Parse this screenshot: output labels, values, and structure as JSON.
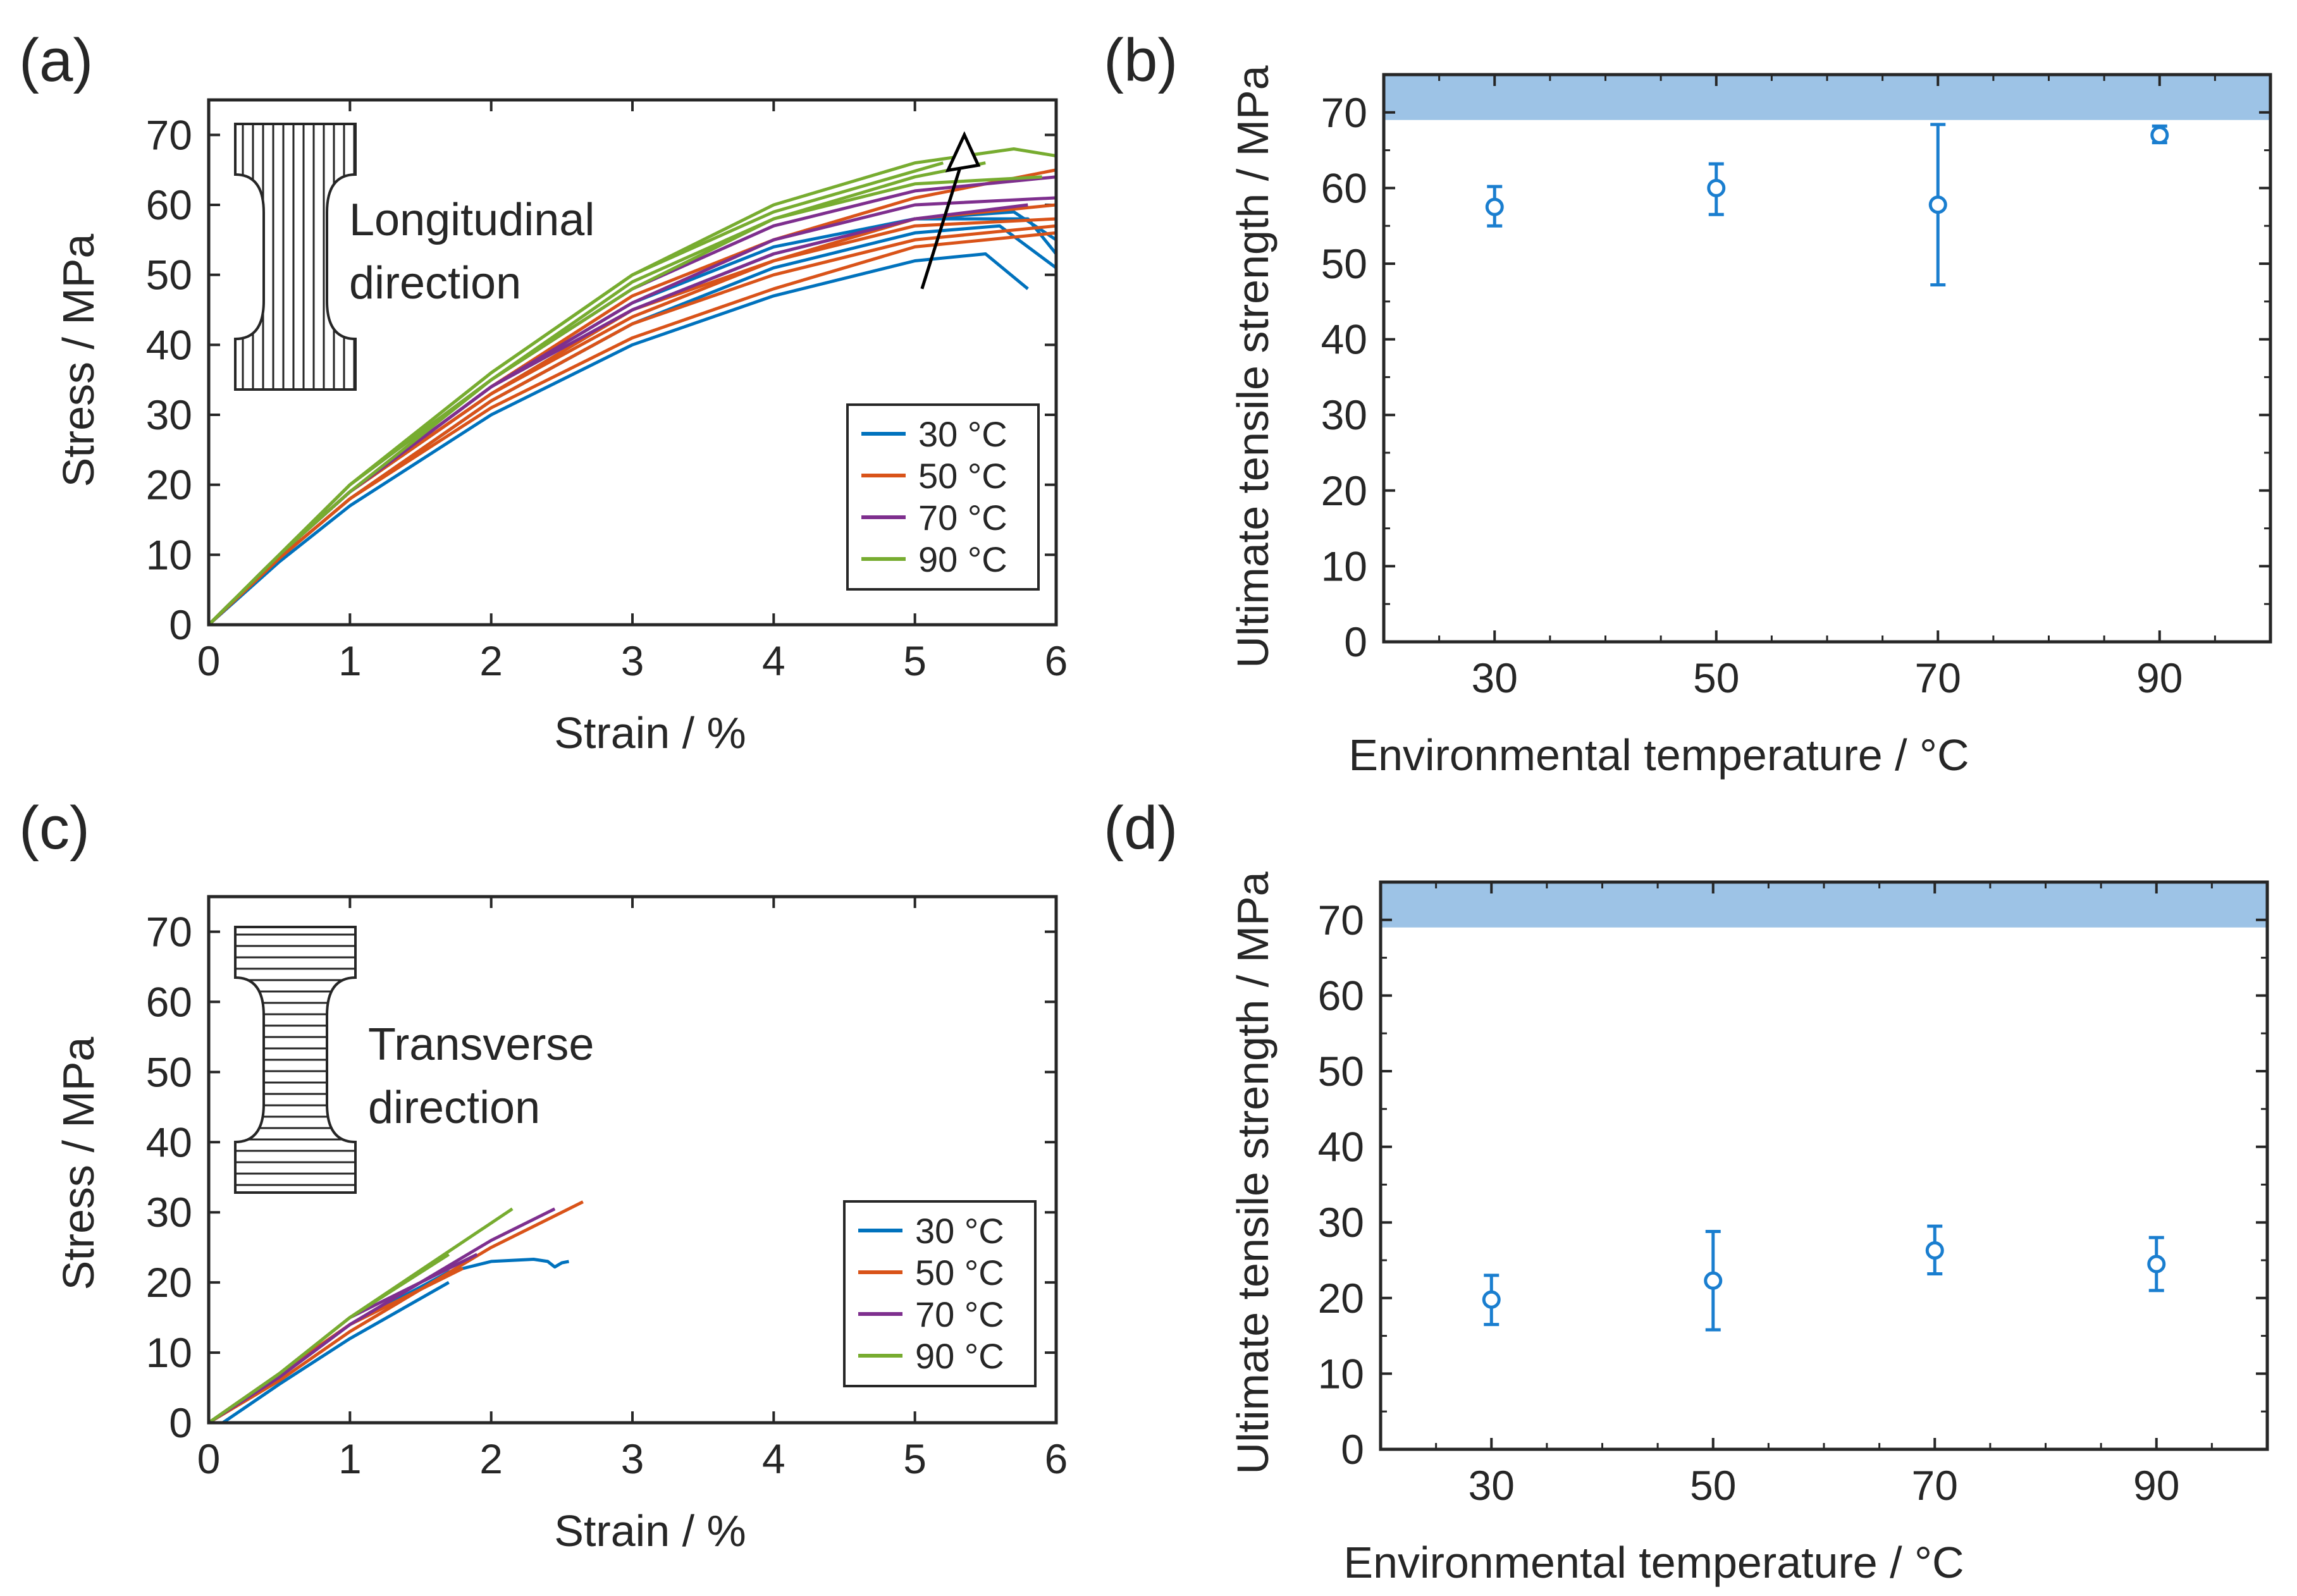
{
  "colors": {
    "30": "#0072BD",
    "50": "#D95319",
    "70": "#7E2F8E",
    "90": "#77AC30",
    "band": "#9DC3E6",
    "marker": "#1A7ECF"
  },
  "legend_labels": [
    "30 °C",
    "50 °C",
    "70 °C",
    "90 °C"
  ],
  "chart_data": [
    {
      "panel": "(a)",
      "type": "line",
      "xlabel": "Strain / %",
      "ylabel": "Stress / MPa",
      "xlim": [
        0,
        6
      ],
      "ylim": [
        0,
        75
      ],
      "xticks": [
        0,
        1,
        2,
        3,
        4,
        5,
        6
      ],
      "yticks": [
        0,
        10,
        20,
        30,
        40,
        50,
        60,
        70
      ],
      "inset_text": [
        "Longitudinal",
        "direction"
      ],
      "inset_pattern": "vertical",
      "legend": [
        "30 °C",
        "50 °C",
        "70 °C",
        "90 °C"
      ],
      "series": [
        {
          "name": "30 °C",
          "curves": [
            {
              "x": [
                0,
                0.5,
                1,
                2,
                3,
                4,
                5,
                5.5,
                5.8
              ],
              "y": [
                0,
                9,
                17,
                30,
                40,
                47,
                52,
                53,
                48
              ]
            },
            {
              "x": [
                0,
                0.5,
                1,
                2,
                3,
                4,
                5,
                5.6,
                6
              ],
              "y": [
                0,
                9.5,
                18,
                32,
                43,
                51,
                56,
                57,
                51
              ]
            },
            {
              "x": [
                0,
                0.5,
                1,
                2,
                3,
                4,
                5,
                5.7,
                6
              ],
              "y": [
                0,
                10,
                19,
                33,
                45,
                53,
                58,
                59,
                55
              ]
            },
            {
              "x": [
                0,
                0.5,
                1,
                2,
                3,
                4,
                5,
                5.8,
                6
              ],
              "y": [
                0,
                10,
                19,
                34,
                46,
                54,
                58,
                58,
                53
              ]
            }
          ]
        },
        {
          "name": "50 °C",
          "curves": [
            {
              "x": [
                0,
                0.5,
                1,
                2,
                3,
                4,
                5,
                6
              ],
              "y": [
                0,
                9.5,
                18,
                31,
                41,
                48,
                54,
                56
              ]
            },
            {
              "x": [
                0,
                0.5,
                1,
                2,
                3,
                4,
                5,
                6
              ],
              "y": [
                0,
                9.5,
                18,
                32,
                43,
                50,
                55,
                57
              ]
            },
            {
              "x": [
                0,
                0.5,
                1,
                2,
                3,
                4,
                5,
                6
              ],
              "y": [
                0,
                10,
                19,
                33,
                45,
                52,
                57,
                58
              ]
            },
            {
              "x": [
                0,
                0.5,
                1,
                2,
                3,
                4,
                5,
                6
              ],
              "y": [
                0,
                10,
                19,
                34,
                47,
                55,
                61,
                65
              ]
            },
            {
              "x": [
                0,
                0.5,
                1,
                2,
                3,
                4,
                5,
                6
              ],
              "y": [
                0,
                10,
                19,
                33,
                44,
                52,
                58,
                60
              ]
            }
          ]
        },
        {
          "name": "70 °C",
          "curves": [
            {
              "x": [
                0,
                0.5,
                1,
                2,
                3,
                4,
                5,
                6
              ],
              "y": [
                0,
                10,
                20,
                35,
                48,
                57,
                62,
                64
              ]
            },
            {
              "x": [
                0,
                0.5,
                1,
                2,
                3,
                4,
                5,
                6
              ],
              "y": [
                0,
                10,
                19,
                34,
                46,
                55,
                60,
                61
              ]
            },
            {
              "x": [
                0,
                0.5,
                1,
                2,
                3,
                4,
                5,
                5.8
              ],
              "y": [
                0,
                10,
                19,
                34,
                45,
                53,
                58,
                60
              ]
            }
          ]
        },
        {
          "name": "90 °C",
          "curves": [
            {
              "x": [
                0,
                0.5,
                1,
                2,
                3,
                4,
                5,
                5.7,
                6
              ],
              "y": [
                0,
                10,
                20,
                36,
                50,
                60,
                66,
                68,
                67
              ]
            },
            {
              "x": [
                0,
                0.5,
                1,
                2,
                3,
                4,
                5,
                5.5
              ],
              "y": [
                0,
                10,
                20,
                35,
                49,
                58,
                64,
                66
              ]
            },
            {
              "x": [
                0,
                0.5,
                1,
                2,
                3,
                4,
                5,
                5.9
              ],
              "y": [
                0,
                10,
                19,
                35,
                48,
                58,
                63,
                64
              ]
            },
            {
              "x": [
                0,
                0.5,
                1,
                2,
                3,
                4,
                5.2
              ],
              "y": [
                0,
                10,
                20,
                36,
                50,
                59,
                66
              ]
            }
          ]
        }
      ],
      "arrow": {
        "from": [
          5.05,
          48
        ],
        "to": [
          5.35,
          70
        ]
      }
    },
    {
      "panel": "(b)",
      "type": "scatter",
      "xlabel": "Environmental temperature / °C",
      "ylabel": "Ultimate tensile strength / MPa",
      "xlim": [
        20,
        100
      ],
      "ylim": [
        0,
        75
      ],
      "xticks": [
        30,
        50,
        70,
        90
      ],
      "yticks": [
        0,
        10,
        20,
        30,
        40,
        50,
        60,
        70
      ],
      "band": [
        69,
        75
      ],
      "points": [
        {
          "x": 30,
          "y": 57.5,
          "lo": 55,
          "hi": 60.2
        },
        {
          "x": 50,
          "y": 60,
          "lo": 56.5,
          "hi": 63.2
        },
        {
          "x": 70,
          "y": 57.8,
          "lo": 47.2,
          "hi": 68.4
        },
        {
          "x": 90,
          "y": 67,
          "lo": 66,
          "hi": 68.2
        }
      ]
    },
    {
      "panel": "(c)",
      "type": "line",
      "xlabel": "Strain / %",
      "ylabel": "Stress / MPa",
      "xlim": [
        0,
        6
      ],
      "ylim": [
        0,
        75
      ],
      "xticks": [
        0,
        1,
        2,
        3,
        4,
        5,
        6
      ],
      "yticks": [
        0,
        10,
        20,
        30,
        40,
        50,
        60,
        70
      ],
      "inset_text": [
        "Transverse",
        "direction"
      ],
      "inset_pattern": "horizontal",
      "legend": [
        "30 °C",
        "50 °C",
        "70 °C",
        "90 °C"
      ],
      "series": [
        {
          "name": "30 °C",
          "curves": [
            {
              "x": [
                0.1,
                0.5,
                1,
                1.7
              ],
              "y": [
                0,
                5.5,
                12,
                20
              ]
            },
            {
              "x": [
                0,
                0.5,
                1,
                1.7,
                2.0,
                2.3,
                2.4,
                2.45,
                2.5,
                2.55
              ],
              "y": [
                0,
                6.5,
                14,
                21.5,
                23,
                23.3,
                23,
                22.2,
                22.8,
                23
              ]
            }
          ]
        },
        {
          "name": "50 °C",
          "curves": [
            {
              "x": [
                0,
                0.5,
                1,
                2,
                2.65
              ],
              "y": [
                0,
                6,
                13,
                25,
                31.5
              ]
            },
            {
              "x": [
                0,
                0.5,
                1,
                1.8
              ],
              "y": [
                0,
                7,
                14,
                22
              ]
            }
          ]
        },
        {
          "name": "70 °C",
          "curves": [
            {
              "x": [
                0,
                0.5,
                1,
                2,
                2.45
              ],
              "y": [
                0,
                6.5,
                14,
                26,
                30.5
              ]
            },
            {
              "x": [
                0,
                0.5,
                1,
                1.9
              ],
              "y": [
                0,
                7,
                15,
                24
              ]
            }
          ]
        },
        {
          "name": "90 °C",
          "curves": [
            {
              "x": [
                0,
                0.5,
                1,
                2.15
              ],
              "y": [
                0,
                7,
                15,
                30.5
              ]
            },
            {
              "x": [
                0,
                0.5,
                1,
                1.7
              ],
              "y": [
                0,
                7,
                15,
                24
              ]
            }
          ]
        }
      ]
    },
    {
      "panel": "(d)",
      "type": "scatter",
      "xlabel": "Environmental temperature / °C",
      "ylabel": "Ultimate tensile strength / MPa",
      "xlim": [
        20,
        100
      ],
      "ylim": [
        0,
        75
      ],
      "xticks": [
        30,
        50,
        70,
        90
      ],
      "yticks": [
        0,
        10,
        20,
        30,
        40,
        50,
        60,
        70
      ],
      "band": [
        69,
        75
      ],
      "points": [
        {
          "x": 30,
          "y": 19.8,
          "lo": 16.5,
          "hi": 23
        },
        {
          "x": 50,
          "y": 22.3,
          "lo": 15.8,
          "hi": 28.8
        },
        {
          "x": 70,
          "y": 26.3,
          "lo": 23.2,
          "hi": 29.5
        },
        {
          "x": 90,
          "y": 24.5,
          "lo": 21,
          "hi": 28
        }
      ]
    }
  ]
}
